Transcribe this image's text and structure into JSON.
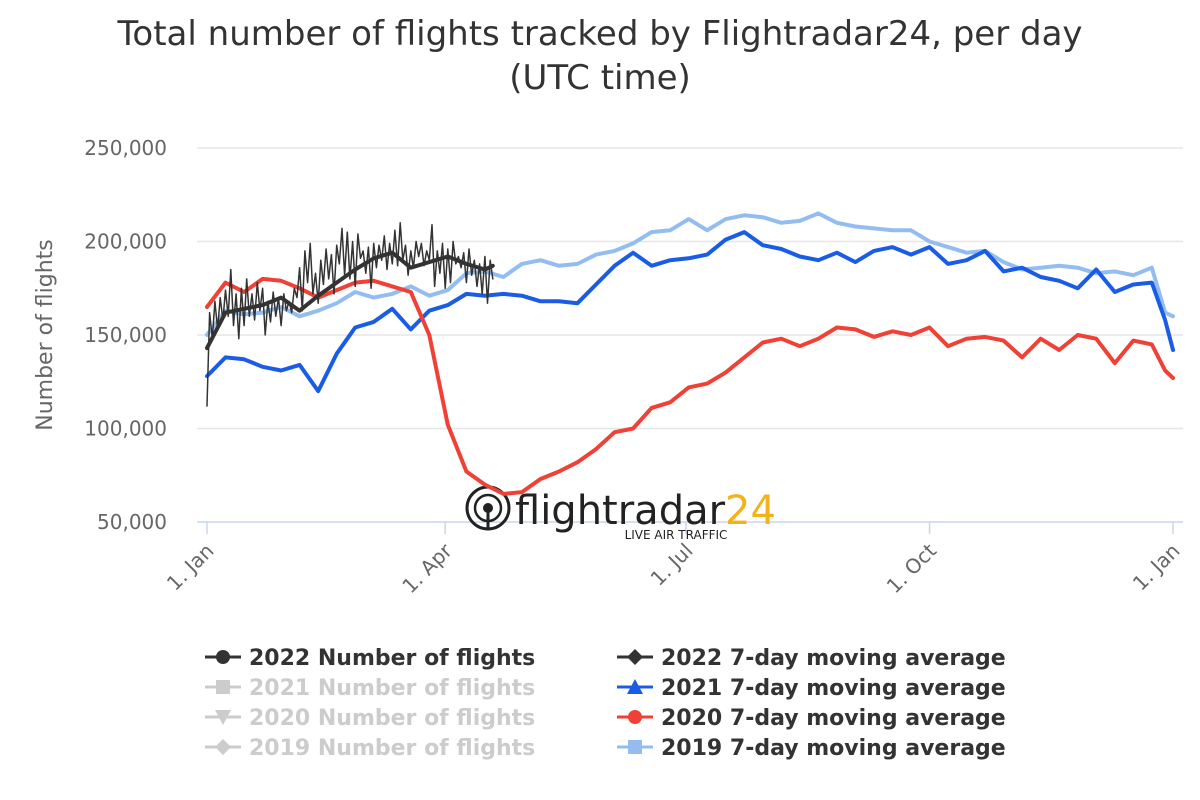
{
  "chart_data": {
    "type": "line",
    "title": "Total number of flights tracked by Flightradar24, per day",
    "subtitle": "(UTC time)",
    "ylabel": "Number of flights",
    "xlabel": "",
    "ylim": [
      50000,
      250000
    ],
    "y_ticks": [
      {
        "value": 50000,
        "label": "50,000"
      },
      {
        "value": 100000,
        "label": "100,000"
      },
      {
        "value": 150000,
        "label": "150,000"
      },
      {
        "value": 200000,
        "label": "200,000"
      },
      {
        "value": 250000,
        "label": "250,000"
      }
    ],
    "x_ticks": [
      {
        "day": 0,
        "label": "1. Jan"
      },
      {
        "day": 90,
        "label": "1. Apr"
      },
      {
        "day": 181,
        "label": "1. Jul"
      },
      {
        "day": 273,
        "label": "1. Oct"
      },
      {
        "day": 365,
        "label": "1. Jan"
      }
    ],
    "grid": true,
    "legend_position": "bottom",
    "legend": [
      {
        "label": "2022 Number of flights",
        "color": "#333333",
        "marker": "circle",
        "visible": true
      },
      {
        "label": "2022 7-day moving average",
        "color": "#333333",
        "marker": "diamond",
        "visible": true
      },
      {
        "label": "2021 Number of flights",
        "color": "#cccccc",
        "marker": "square",
        "visible": false
      },
      {
        "label": "2021 7-day moving average",
        "color": "#1a5ce6",
        "marker": "triangle",
        "visible": true
      },
      {
        "label": "2020 Number of flights",
        "color": "#cccccc",
        "marker": "triangle-down",
        "visible": false
      },
      {
        "label": "2020 7-day moving average",
        "color": "#ef4136",
        "marker": "circle",
        "visible": true
      },
      {
        "label": "2019 Number of flights",
        "color": "#cccccc",
        "marker": "diamond",
        "visible": false
      },
      {
        "label": "2019 7-day moving average",
        "color": "#93bdf0",
        "marker": "square",
        "visible": true
      }
    ],
    "series": [
      {
        "name": "2019 7-day moving average",
        "color": "#93bdf0",
        "stroke_width": 4,
        "x": [
          0,
          7,
          14,
          21,
          28,
          35,
          42,
          49,
          56,
          63,
          70,
          77,
          84,
          91,
          98,
          105,
          112,
          119,
          126,
          133,
          140,
          147,
          154,
          161,
          168,
          175,
          182,
          189,
          196,
          203,
          210,
          217,
          224,
          231,
          238,
          245,
          252,
          259,
          266,
          273,
          280,
          287,
          294,
          301,
          308,
          315,
          322,
          329,
          336,
          343,
          350,
          357,
          362,
          365
        ],
        "y": [
          150000,
          163000,
          161000,
          162000,
          165000,
          160000,
          163000,
          167000,
          173000,
          170000,
          172000,
          176000,
          171000,
          174000,
          183000,
          184000,
          181000,
          188000,
          190000,
          187000,
          188000,
          193000,
          195000,
          199000,
          205000,
          206000,
          212000,
          206000,
          212000,
          214000,
          213000,
          210000,
          211000,
          215000,
          210000,
          208000,
          207000,
          206000,
          206000,
          200000,
          197000,
          194000,
          195000,
          189000,
          185000,
          186000,
          187000,
          186000,
          183000,
          184000,
          182000,
          186000,
          162000,
          160000
        ]
      },
      {
        "name": "2021 7-day moving average",
        "color": "#1a5ce6",
        "stroke_width": 4,
        "x": [
          0,
          7,
          14,
          21,
          28,
          35,
          42,
          49,
          56,
          63,
          70,
          77,
          84,
          91,
          98,
          105,
          112,
          119,
          126,
          133,
          140,
          147,
          154,
          161,
          168,
          175,
          182,
          189,
          196,
          203,
          210,
          217,
          224,
          231,
          238,
          245,
          252,
          259,
          266,
          273,
          280,
          287,
          294,
          301,
          308,
          315,
          322,
          329,
          336,
          343,
          350,
          357,
          362,
          365
        ],
        "y": [
          128000,
          138000,
          137000,
          133000,
          131000,
          134000,
          120000,
          140000,
          154000,
          157000,
          164000,
          153000,
          163000,
          166000,
          172000,
          171000,
          172000,
          171000,
          168000,
          168000,
          167000,
          177000,
          187000,
          194000,
          187000,
          190000,
          191000,
          193000,
          201000,
          205000,
          198000,
          196000,
          192000,
          190000,
          194000,
          189000,
          195000,
          197000,
          193000,
          197000,
          188000,
          190000,
          195000,
          184000,
          186000,
          181000,
          179000,
          175000,
          185000,
          173000,
          177000,
          178000,
          158000,
          142000
        ]
      },
      {
        "name": "2020 7-day moving average",
        "color": "#ef4136",
        "stroke_width": 4,
        "x": [
          0,
          7,
          14,
          21,
          28,
          35,
          42,
          49,
          56,
          63,
          70,
          77,
          84,
          91,
          98,
          105,
          112,
          119,
          126,
          133,
          140,
          147,
          154,
          161,
          168,
          175,
          182,
          189,
          196,
          203,
          210,
          217,
          224,
          231,
          238,
          245,
          252,
          259,
          266,
          273,
          280,
          287,
          294,
          301,
          308,
          315,
          322,
          329,
          336,
          343,
          350,
          357,
          362,
          365
        ],
        "y": [
          165000,
          178000,
          173000,
          180000,
          179000,
          175000,
          170000,
          174000,
          178000,
          179000,
          176000,
          173000,
          150000,
          102000,
          77000,
          70000,
          65000,
          66000,
          73000,
          77000,
          82000,
          89000,
          98000,
          100000,
          111000,
          114000,
          122000,
          124000,
          130000,
          138000,
          146000,
          148000,
          144000,
          148000,
          154000,
          153000,
          149000,
          152000,
          150000,
          154000,
          144000,
          148000,
          149000,
          147000,
          138000,
          148000,
          142000,
          150000,
          148000,
          135000,
          147000,
          145000,
          131000,
          127000
        ]
      },
      {
        "name": "2022 7-day moving average",
        "color": "#333333",
        "stroke_width": 4,
        "x": [
          0,
          7,
          14,
          21,
          28,
          35,
          42,
          49,
          56,
          63,
          70,
          77,
          84,
          91,
          98,
          105,
          108
        ],
        "y": [
          143000,
          162000,
          164000,
          166000,
          170000,
          163000,
          171000,
          178000,
          185000,
          191000,
          194000,
          186000,
          189000,
          192000,
          188000,
          185000,
          187000
        ]
      },
      {
        "name": "2022 Number of flights",
        "color": "#333333",
        "stroke_width": 1.5,
        "x": [
          0,
          1,
          2,
          3,
          4,
          5,
          6,
          7,
          8,
          9,
          10,
          11,
          12,
          13,
          14,
          15,
          16,
          17,
          18,
          19,
          20,
          21,
          22,
          23,
          24,
          25,
          26,
          27,
          28,
          29,
          30,
          31,
          32,
          33,
          34,
          35,
          36,
          37,
          38,
          39,
          40,
          41,
          42,
          43,
          44,
          45,
          46,
          47,
          48,
          49,
          50,
          51,
          52,
          53,
          54,
          55,
          56,
          57,
          58,
          59,
          60,
          61,
          62,
          63,
          64,
          65,
          66,
          67,
          68,
          69,
          70,
          71,
          72,
          73,
          74,
          75,
          76,
          77,
          78,
          79,
          80,
          81,
          82,
          83,
          84,
          85,
          86,
          87,
          88,
          89,
          90,
          91,
          92,
          93,
          94,
          95,
          96,
          97,
          98,
          99,
          100,
          101,
          102,
          103,
          104,
          105,
          106,
          107,
          108
        ],
        "y": [
          112000,
          162000,
          148000,
          168000,
          153000,
          170000,
          158000,
          174000,
          160000,
          185000,
          155000,
          172000,
          148000,
          175000,
          155000,
          180000,
          160000,
          172000,
          158000,
          178000,
          163000,
          175000,
          150000,
          168000,
          157000,
          173000,
          160000,
          170000,
          155000,
          172000,
          163000,
          168000,
          162000,
          175000,
          170000,
          186000,
          163000,
          195000,
          178000,
          199000,
          172000,
          183000,
          167000,
          190000,
          177000,
          196000,
          180000,
          193000,
          172000,
          198000,
          188000,
          207000,
          182000,
          205000,
          180000,
          200000,
          176000,
          204000,
          191000,
          195000,
          183000,
          197000,
          175000,
          199000,
          186000,
          198000,
          190000,
          203000,
          185000,
          199000,
          188000,
          206000,
          187000,
          210000,
          190000,
          198000,
          182000,
          195000,
          186000,
          200000,
          192000,
          199000,
          187000,
          195000,
          190000,
          209000,
          176000,
          195000,
          183000,
          199000,
          175000,
          196000,
          178000,
          200000,
          188000,
          192000,
          186000,
          194000,
          178000,
          196000,
          182000,
          190000,
          176000,
          188000,
          172000,
          192000,
          167000,
          190000,
          180000
        ]
      }
    ]
  },
  "logo": {
    "brand_prefix": "flightradar",
    "brand_suffix": "24",
    "tagline": "LIVE AIR TRAFFIC",
    "prefix_color": "#222222",
    "suffix_color": "#f2b21b"
  }
}
